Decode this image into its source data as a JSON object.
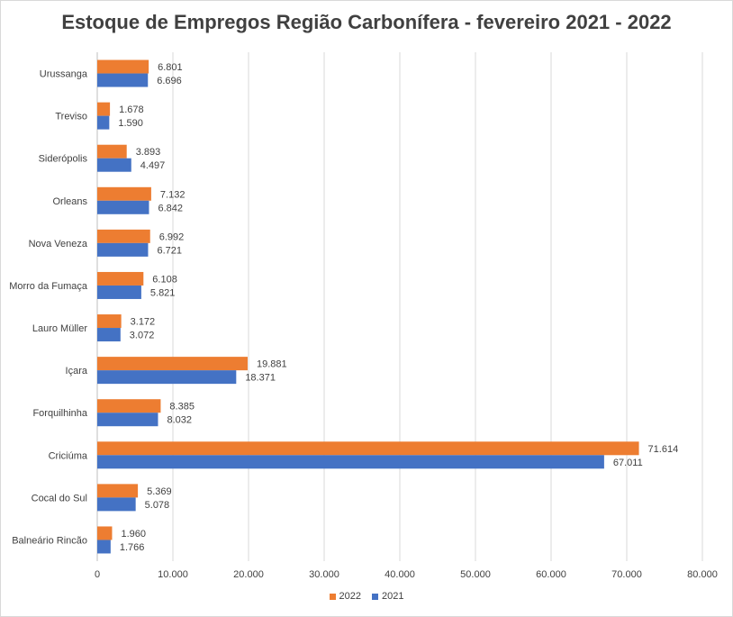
{
  "chart_data": {
    "type": "bar",
    "orientation": "horizontal",
    "title": "Estoque de Empregos Região Carbonífera - fevereiro 2021 - 2022",
    "categories": [
      "Urussanga",
      "Treviso",
      "Siderópolis",
      "Orleans",
      "Nova Veneza",
      "Morro da Fumaça",
      "Lauro Müller",
      "Içara",
      "Forquilhinha",
      "Criciúma",
      "Cocal do Sul",
      "Balneário Rincão"
    ],
    "series": [
      {
        "name": "2022",
        "color": "#ED7D31",
        "values": [
          6801,
          1678,
          3893,
          7132,
          6992,
          6108,
          3172,
          19881,
          8385,
          71614,
          5369,
          1960
        ],
        "labels": [
          "6.801",
          "1.678",
          "3.893",
          "7.132",
          "6.992",
          "6.108",
          "3.172",
          "19.881",
          "8.385",
          "71.614",
          "5.369",
          "1.960"
        ]
      },
      {
        "name": "2021",
        "color": "#4472C4",
        "values": [
          6696,
          1590,
          4497,
          6842,
          6721,
          5821,
          3072,
          18371,
          8032,
          67011,
          5078,
          1766
        ],
        "labels": [
          "6.696",
          "1.590",
          "4.497",
          "6.842",
          "6.721",
          "5.821",
          "3.072",
          "18.371",
          "8.032",
          "67.011",
          "5.078",
          "1.766"
        ]
      }
    ],
    "xlim": [
      0,
      80000
    ],
    "x_ticks": [
      0,
      10000,
      20000,
      30000,
      40000,
      50000,
      60000,
      70000,
      80000
    ],
    "x_tick_labels": [
      "0",
      "10.000",
      "20.000",
      "30.000",
      "40.000",
      "50.000",
      "60.000",
      "70.000",
      "80.000"
    ],
    "grid": true,
    "legend_position": "bottom"
  }
}
